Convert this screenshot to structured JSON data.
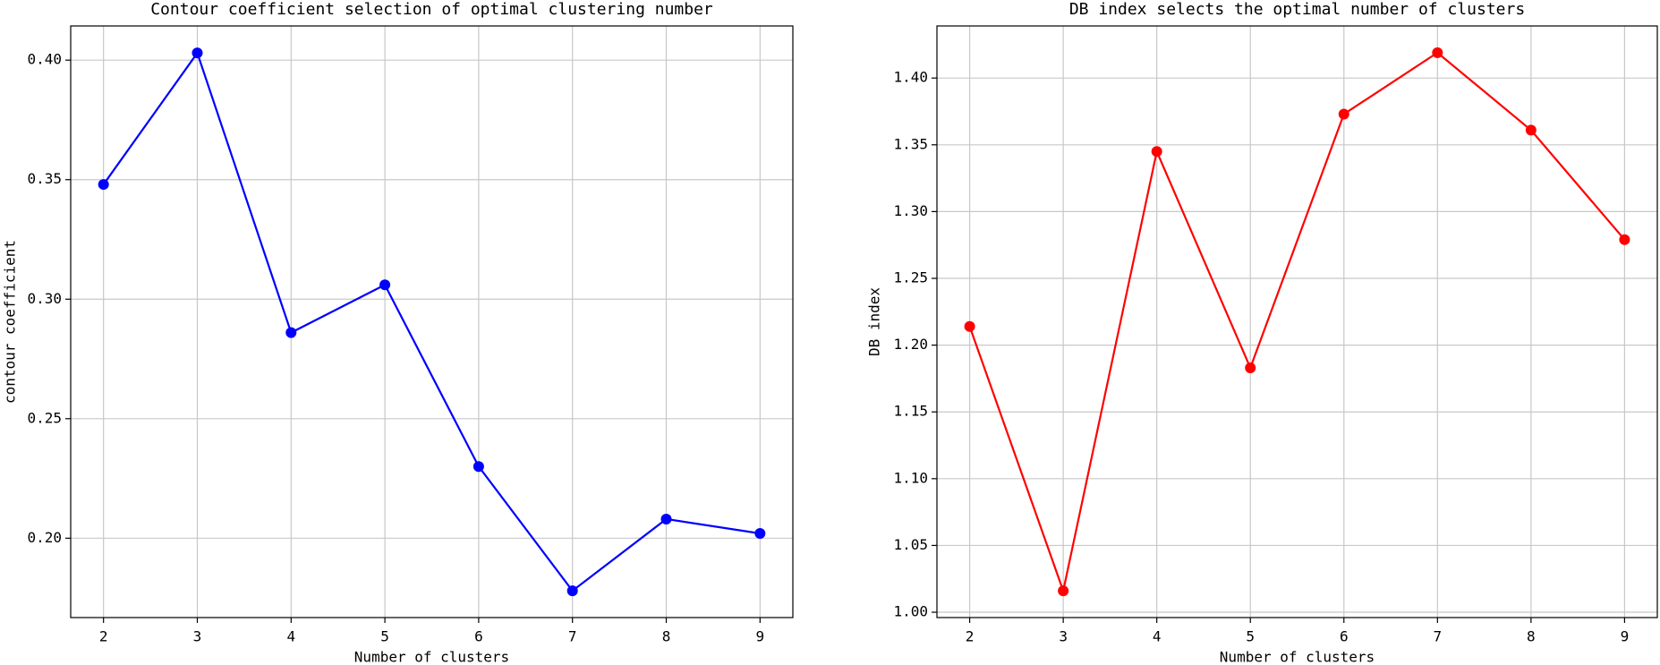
{
  "chart_data": [
    {
      "type": "line",
      "title": "Contour coefficient selection of optimal clustering number",
      "x_label": "Number of clusters",
      "y_label": "contour coefficient",
      "x": [
        2,
        3,
        4,
        5,
        6,
        7,
        8,
        9
      ],
      "series": [
        {
          "name": "contour coefficient",
          "color": "#0000ff",
          "values": [
            0.348,
            0.403,
            0.286,
            0.306,
            0.23,
            0.178,
            0.208,
            0.202
          ]
        }
      ],
      "xlim": [
        1.65,
        9.35
      ],
      "xticks": [
        2,
        3,
        4,
        5,
        6,
        7,
        8,
        9
      ],
      "ylim": [
        0.1668,
        0.4143
      ],
      "yticks": [
        {
          "value": 0.2,
          "label": "0.20"
        },
        {
          "value": 0.25,
          "label": "0.25"
        },
        {
          "value": 0.3,
          "label": "0.30"
        },
        {
          "value": 0.35,
          "label": "0.35"
        },
        {
          "value": 0.4,
          "label": "0.40"
        }
      ],
      "grid": true
    },
    {
      "type": "line",
      "title": "DB index selects the optimal number of clusters",
      "x_label": "Number of clusters",
      "y_label": "DB index",
      "x": [
        2,
        3,
        4,
        5,
        6,
        7,
        8,
        9
      ],
      "series": [
        {
          "name": "DB index",
          "color": "#ff0000",
          "values": [
            1.214,
            1.016,
            1.345,
            1.183,
            1.373,
            1.419,
            1.361,
            1.279
          ]
        }
      ],
      "xlim": [
        1.65,
        9.35
      ],
      "xticks": [
        2,
        3,
        4,
        5,
        6,
        7,
        8,
        9
      ],
      "ylim": [
        0.996,
        1.439
      ],
      "yticks": [
        {
          "value": 1.0,
          "label": "1.00"
        },
        {
          "value": 1.05,
          "label": "1.05"
        },
        {
          "value": 1.1,
          "label": "1.10"
        },
        {
          "value": 1.15,
          "label": "1.15"
        },
        {
          "value": 1.2,
          "label": "1.20"
        },
        {
          "value": 1.25,
          "label": "1.25"
        },
        {
          "value": 1.3,
          "label": "1.30"
        },
        {
          "value": 1.35,
          "label": "1.35"
        },
        {
          "value": 1.4,
          "label": "1.40"
        }
      ],
      "grid": true
    }
  ]
}
